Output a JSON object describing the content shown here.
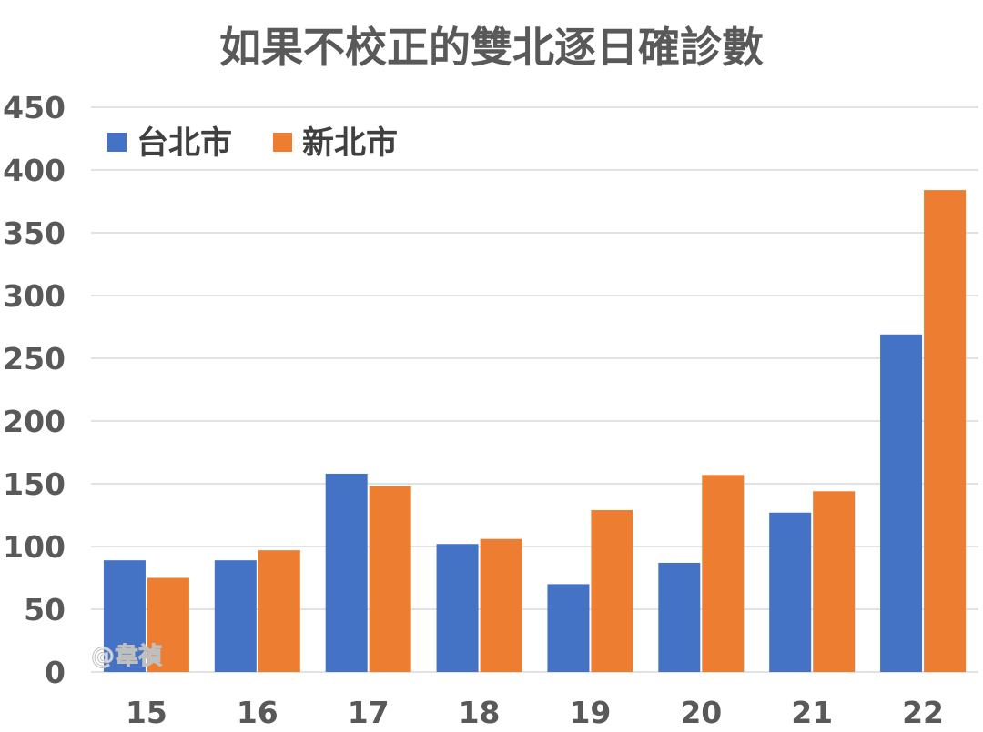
{
  "chart_data": {
    "type": "bar",
    "title": "如果不校正的雙北逐日確診數",
    "categories": [
      "15",
      "16",
      "17",
      "18",
      "19",
      "20",
      "21",
      "22"
    ],
    "series": [
      {
        "name": "台北市",
        "color": "#4472c4",
        "values": [
          89,
          89,
          158,
          102,
          70,
          87,
          127,
          269
        ]
      },
      {
        "name": "新北市",
        "color": "#ed7d31",
        "values": [
          75,
          97,
          148,
          106,
          129,
          157,
          144,
          384
        ]
      }
    ],
    "xlabel": "",
    "ylabel": "",
    "ylim": [
      0,
      450
    ],
    "yticks": [
      0,
      50,
      100,
      150,
      200,
      250,
      300,
      350,
      400,
      450
    ],
    "grid": true,
    "legend_position": "top-left"
  },
  "watermark": "@韋禎"
}
